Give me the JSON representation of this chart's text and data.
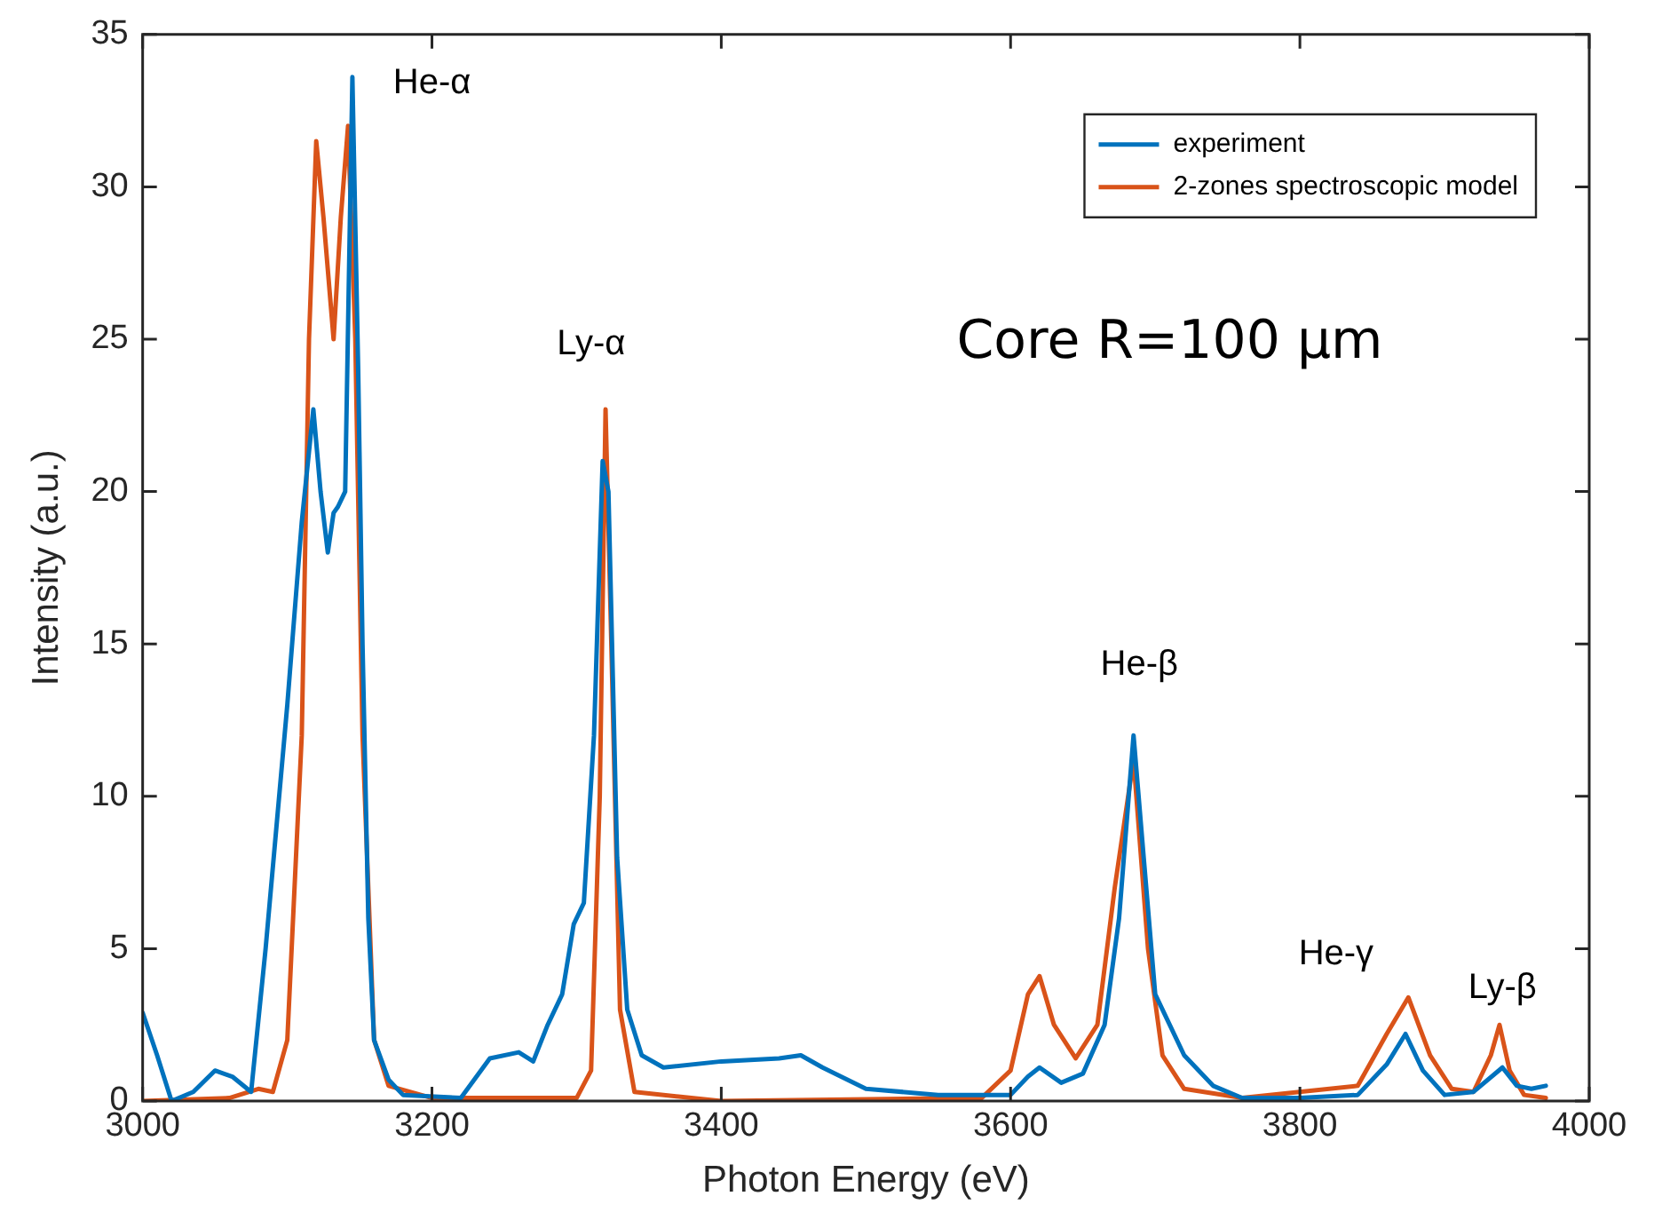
{
  "chart_data": {
    "type": "line",
    "xlabel": "Photon Energy (eV)",
    "ylabel": "Intensity (a.u.)",
    "xlim": [
      3000,
      4000
    ],
    "xticks": [
      3000,
      3200,
      3400,
      3600,
      3800,
      4000
    ],
    "ylim": [
      0,
      35
    ],
    "yticks": [
      0,
      5,
      10,
      15,
      20,
      25,
      30,
      35
    ],
    "grid": false,
    "legend": "top right",
    "marker": "none",
    "line_style": "solid",
    "annotations": [
      "He-α",
      "Ly-α",
      "He-β",
      "He-γ",
      "Ly-β",
      "Core R=100 µm"
    ],
    "series": [
      {
        "name": "experiment",
        "color": "#0072bd",
        "x": [
          3000,
          3010,
          3020,
          3035,
          3050,
          3062,
          3075,
          3085,
          3100,
          3110,
          3118,
          3123,
          3128,
          3132,
          3135,
          3140,
          3145,
          3149,
          3152,
          3156,
          3160,
          3170,
          3180,
          3220,
          3240,
          3260,
          3270,
          3280,
          3290,
          3298,
          3305,
          3312,
          3318,
          3322,
          3328,
          3335,
          3345,
          3360,
          3400,
          3440,
          3455,
          3470,
          3500,
          3550,
          3600,
          3612,
          3620,
          3635,
          3650,
          3665,
          3675,
          3685,
          3692,
          3700,
          3720,
          3740,
          3760,
          3800,
          3840,
          3860,
          3873,
          3885,
          3900,
          3920,
          3940,
          3950,
          3960,
          3970
        ],
        "values": [
          2.9,
          1.5,
          0,
          0.3,
          1.0,
          0.8,
          0.3,
          5,
          13,
          19,
          22.7,
          20,
          18,
          19.3,
          19.5,
          20,
          33.6,
          24,
          15,
          6,
          2,
          0.7,
          0.2,
          0.1,
          1.4,
          1.6,
          1.3,
          2.5,
          3.5,
          5.8,
          6.5,
          12,
          21,
          20,
          8,
          3,
          1.5,
          1.1,
          1.3,
          1.4,
          1.5,
          1.1,
          0.4,
          0.2,
          0.2,
          0.8,
          1.1,
          0.6,
          0.9,
          2.5,
          6,
          12,
          8,
          3.5,
          1.5,
          0.5,
          0.1,
          0.1,
          0.2,
          1.2,
          2.2,
          1.0,
          0.2,
          0.3,
          1.1,
          0.5,
          0.4,
          0.5
        ]
      },
      {
        "name": "2-zones spectroscopic model",
        "color": "#d95319",
        "x": [
          3000,
          3060,
          3080,
          3090,
          3100,
          3110,
          3115,
          3120,
          3125,
          3132,
          3137,
          3142,
          3147,
          3152,
          3160,
          3170,
          3200,
          3300,
          3310,
          3316,
          3320,
          3324,
          3330,
          3340,
          3400,
          3580,
          3600,
          3612,
          3620,
          3630,
          3645,
          3660,
          3672,
          3685,
          3695,
          3705,
          3720,
          3760,
          3840,
          3860,
          3875,
          3890,
          3905,
          3920,
          3932,
          3938,
          3945,
          3955,
          3970
        ],
        "values": [
          0,
          0.1,
          0.4,
          0.3,
          2,
          12,
          25,
          31.5,
          29,
          25,
          29,
          32,
          25,
          12,
          2,
          0.5,
          0.1,
          0.1,
          1,
          10,
          22.7,
          15,
          3,
          0.3,
          0,
          0.1,
          1,
          3.5,
          4.1,
          2.5,
          1.4,
          2.5,
          7,
          11.2,
          5,
          1.5,
          0.4,
          0.1,
          0.5,
          2.2,
          3.4,
          1.5,
          0.4,
          0.3,
          1.5,
          2.5,
          1,
          0.2,
          0.1
        ]
      }
    ]
  }
}
